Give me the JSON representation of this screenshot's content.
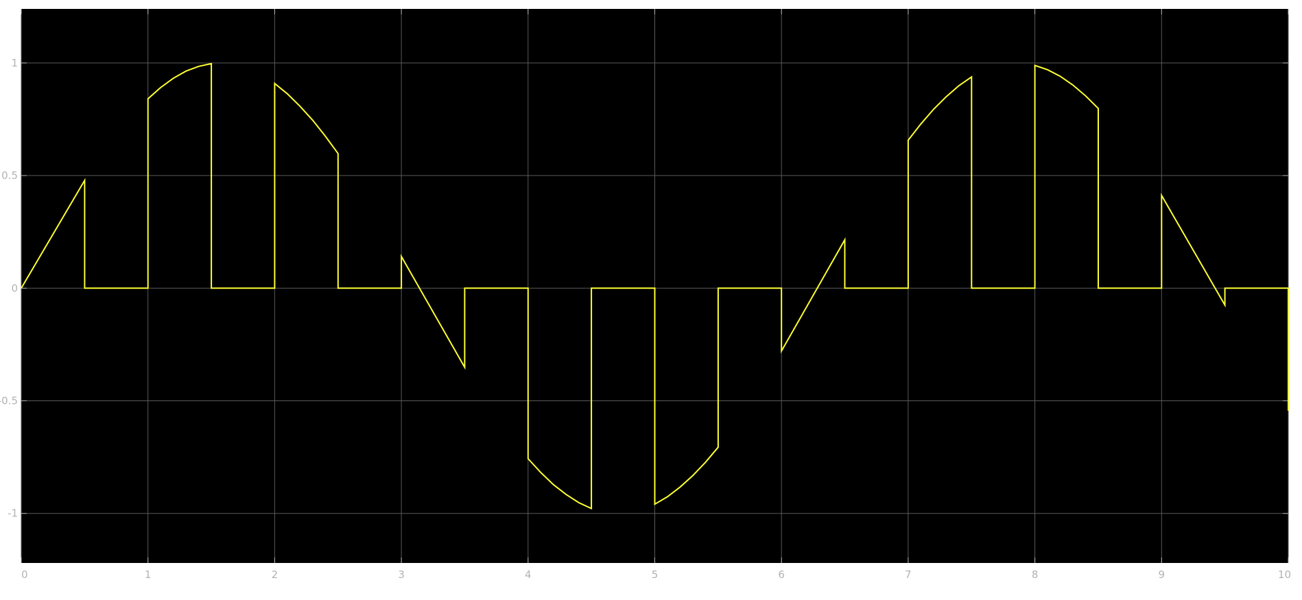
{
  "chart_data": {
    "type": "line",
    "title": "",
    "xlabel": "",
    "ylabel": "",
    "xlim": [
      0,
      10
    ],
    "ylim": [
      -1.22,
      1.24
    ],
    "grid": true,
    "background_color": "#000000",
    "grid_color": "#5a5a5a",
    "tick_color": "#b3b3b3",
    "x_ticks": [
      {
        "value": 0,
        "label": "0"
      },
      {
        "value": 1,
        "label": "1"
      },
      {
        "value": 2,
        "label": "2"
      },
      {
        "value": 3,
        "label": "3"
      },
      {
        "value": 4,
        "label": "4"
      },
      {
        "value": 5,
        "label": "5"
      },
      {
        "value": 6,
        "label": "6"
      },
      {
        "value": 7,
        "label": "7"
      },
      {
        "value": 8,
        "label": "8"
      },
      {
        "value": 9,
        "label": "9"
      },
      {
        "value": 10,
        "label": "10"
      }
    ],
    "y_ticks": [
      {
        "value": 1,
        "label": "1"
      },
      {
        "value": 0.5,
        "label": "0.5"
      },
      {
        "value": 0,
        "label": "0"
      },
      {
        "value": -0.5,
        "label": "-0.5"
      },
      {
        "value": -1,
        "label": "-1"
      }
    ],
    "series": [
      {
        "color": "#ffff33",
        "segments": [
          [
            [
              0,
              0
            ],
            [
              0.5,
              0.479
            ]
          ],
          [
            [
              0.5,
              0
            ],
            [
              1.0,
              0
            ]
          ],
          [
            [
              1.0,
              0.841
            ],
            [
              1.1,
              0.891
            ],
            [
              1.2,
              0.932
            ],
            [
              1.3,
              0.964
            ],
            [
              1.4,
              0.985
            ],
            [
              1.5,
              0.997
            ]
          ],
          [
            [
              1.5,
              0
            ],
            [
              2.0,
              0
            ]
          ],
          [
            [
              2.0,
              0.909
            ],
            [
              2.1,
              0.863
            ],
            [
              2.2,
              0.808
            ],
            [
              2.3,
              0.746
            ],
            [
              2.4,
              0.675
            ],
            [
              2.5,
              0.598
            ]
          ],
          [
            [
              2.5,
              0
            ],
            [
              3.0,
              0
            ]
          ],
          [
            [
              3.0,
              0.141
            ],
            [
              3.5,
              -0.351
            ]
          ],
          [
            [
              3.5,
              0
            ],
            [
              4.0,
              0
            ]
          ],
          [
            [
              4.0,
              -0.757
            ],
            [
              4.1,
              -0.818
            ],
            [
              4.2,
              -0.872
            ],
            [
              4.3,
              -0.916
            ],
            [
              4.4,
              -0.952
            ],
            [
              4.5,
              -0.978
            ]
          ],
          [
            [
              4.5,
              0
            ],
            [
              5.0,
              0
            ]
          ],
          [
            [
              5.0,
              -0.959
            ],
            [
              5.1,
              -0.926
            ],
            [
              5.2,
              -0.883
            ],
            [
              5.3,
              -0.832
            ],
            [
              5.4,
              -0.773
            ],
            [
              5.5,
              -0.706
            ]
          ],
          [
            [
              5.5,
              0
            ],
            [
              6.0,
              0
            ]
          ],
          [
            [
              6.0,
              -0.279
            ],
            [
              6.5,
              0.215
            ]
          ],
          [
            [
              6.5,
              0
            ],
            [
              7.0,
              0
            ]
          ],
          [
            [
              7.0,
              0.657
            ],
            [
              7.1,
              0.729
            ],
            [
              7.2,
              0.794
            ],
            [
              7.3,
              0.85
            ],
            [
              7.4,
              0.899
            ],
            [
              7.5,
              0.938
            ]
          ],
          [
            [
              7.5,
              0
            ],
            [
              8.0,
              0
            ]
          ],
          [
            [
              8.0,
              0.989
            ],
            [
              8.1,
              0.97
            ],
            [
              8.2,
              0.941
            ],
            [
              8.3,
              0.902
            ],
            [
              8.4,
              0.854
            ],
            [
              8.5,
              0.798
            ]
          ],
          [
            [
              8.5,
              0
            ],
            [
              9.0,
              0
            ]
          ],
          [
            [
              9.0,
              0.412
            ],
            [
              9.5,
              -0.075
            ]
          ],
          [
            [
              9.5,
              0
            ],
            [
              10.0,
              0
            ],
            [
              10.0,
              -0.544
            ]
          ]
        ]
      }
    ]
  }
}
